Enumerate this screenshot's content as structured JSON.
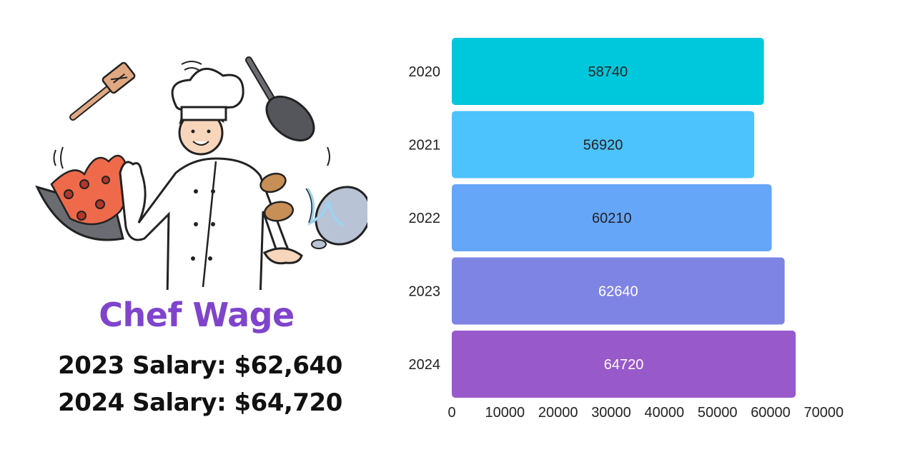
{
  "chart_data": {
    "type": "bar",
    "orientation": "horizontal",
    "title": "Chef Wage",
    "categories": [
      "2020",
      "2021",
      "2022",
      "2023",
      "2024"
    ],
    "values": [
      58740,
      56920,
      60210,
      62640,
      64720
    ],
    "data_labels": [
      "58740",
      "56920",
      "60210",
      "62640",
      "64720"
    ],
    "bar_colors": [
      "#00c8dc",
      "#4cc3fd",
      "#66a6f8",
      "#7e84e4",
      "#9859ca"
    ],
    "label_colors": [
      "#222222",
      "#222222",
      "#222222",
      "#ffffff",
      "#ffffff"
    ],
    "xlim": [
      0,
      70000
    ],
    "xticks": [
      0,
      10000,
      20000,
      30000,
      40000,
      50000,
      60000,
      70000
    ],
    "xtick_labels": [
      "0",
      "10000",
      "20000",
      "30000",
      "40000",
      "50000",
      "60000",
      "70000"
    ],
    "xlabel": "",
    "ylabel": "",
    "grid": false,
    "legend": "none"
  },
  "salaries": {
    "line_2023": "2023 Salary: $62,640",
    "line_2024": "2024 Salary: $64,720"
  },
  "colors": {
    "title": "#8044cc",
    "text": "#111111"
  },
  "illustration": {
    "icon": "chef-juggling-cookware-icon"
  }
}
